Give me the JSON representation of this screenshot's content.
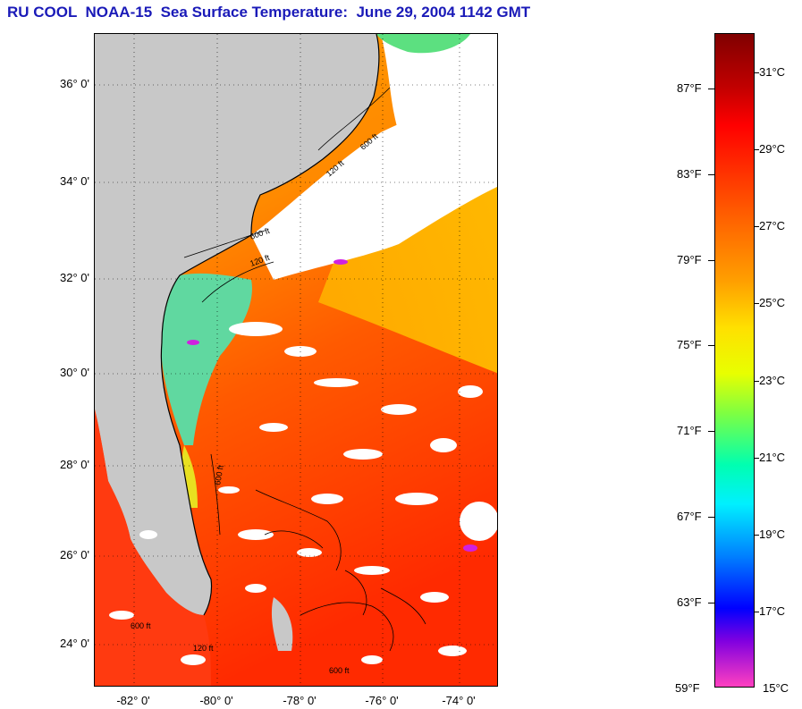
{
  "title": "RU COOL  NOAA-15  Sea Surface Temperature:  June 29, 2004 1142 GMT",
  "map": {
    "lat_labels": [
      "36° 0'",
      "34° 0'",
      "32° 0'",
      "30° 0'",
      "28° 0'",
      "26° 0'",
      "24° 0'"
    ],
    "lon_labels": [
      "-82° 0'",
      "-80° 0'",
      "-78° 0'",
      "-76° 0'",
      "-74° 0'"
    ],
    "contour_labels": [
      "600 ft",
      "120 ft",
      "600 ft",
      "120 ft",
      "600 ft",
      "600 ft",
      "120 ft",
      "600 ft"
    ],
    "colors": {
      "land": "#c8c8c8",
      "cloud": "#ffffff",
      "warm": "#ff5a00",
      "hot": "#ff2a00",
      "mild": "#ffa500",
      "cool": "#3ee0c0",
      "cold": "#d020e0"
    }
  },
  "colorbar": {
    "fahrenheit": [
      "87°F",
      "83°F",
      "79°F",
      "75°F",
      "71°F",
      "67°F",
      "63°F",
      "59°F"
    ],
    "celsius": [
      "31°C",
      "29°C",
      "27°C",
      "25°C",
      "23°C",
      "21°C",
      "19°C",
      "17°C",
      "15°C"
    ],
    "range_f": [
      59,
      89
    ],
    "range_c": [
      15,
      32
    ]
  }
}
